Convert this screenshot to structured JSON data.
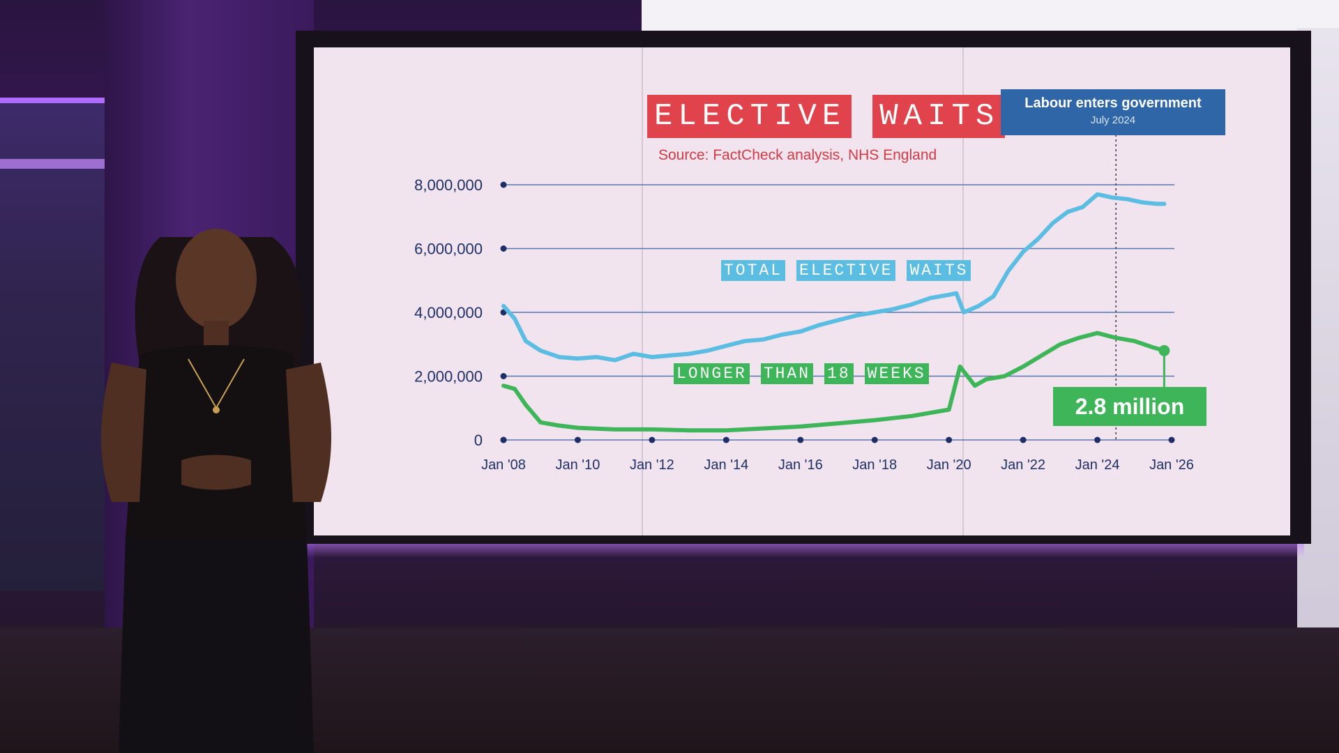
{
  "chart_data": {
    "type": "line",
    "title_words": [
      "ELECTIVE",
      "WAITS"
    ],
    "source": "Source: FactCheck analysis, NHS England",
    "ylim": [
      0,
      8000000
    ],
    "y_ticks": [
      {
        "value": 0,
        "label": "0"
      },
      {
        "value": 2000000,
        "label": "2,000,000"
      },
      {
        "value": 4000000,
        "label": "4,000,000"
      },
      {
        "value": 6000000,
        "label": "6,000,000"
      },
      {
        "value": 8000000,
        "label": "8,000,000"
      }
    ],
    "xlim": [
      2008,
      2026
    ],
    "x_ticks": [
      {
        "value": 2008,
        "label": "Jan '08"
      },
      {
        "value": 2010,
        "label": "Jan '10"
      },
      {
        "value": 2012,
        "label": "Jan '12"
      },
      {
        "value": 2014,
        "label": "Jan '14"
      },
      {
        "value": 2016,
        "label": "Jan '16"
      },
      {
        "value": 2018,
        "label": "Jan '18"
      },
      {
        "value": 2020,
        "label": "Jan '20"
      },
      {
        "value": 2022,
        "label": "Jan '22"
      },
      {
        "value": 2024,
        "label": "Jan '24"
      },
      {
        "value": 2026,
        "label": "Jan '26"
      }
    ],
    "grid": true,
    "series": [
      {
        "name": "TOTAL ELECTIVE WAITS",
        "name_words": [
          "TOTAL",
          "ELECTIVE",
          "WAITS"
        ],
        "color": "#5bbde2",
        "x": [
          2008,
          2008.3,
          2008.6,
          2009,
          2009.5,
          2010,
          2010.5,
          2011,
          2011.5,
          2012,
          2012.5,
          2013,
          2013.5,
          2014,
          2014.5,
          2015,
          2015.5,
          2016,
          2016.5,
          2017,
          2017.5,
          2018,
          2018.5,
          2019,
          2019.5,
          2020,
          2020.2,
          2020.4,
          2020.8,
          2021.2,
          2021.6,
          2022,
          2022.4,
          2022.8,
          2023.2,
          2023.6,
          2024,
          2024.4,
          2024.8,
          2025.2,
          2025.6,
          2025.8
        ],
        "values": [
          4200000,
          3800000,
          3100000,
          2800000,
          2600000,
          2550000,
          2600000,
          2500000,
          2700000,
          2600000,
          2650000,
          2700000,
          2800000,
          2950000,
          3100000,
          3150000,
          3300000,
          3400000,
          3600000,
          3750000,
          3900000,
          4000000,
          4100000,
          4250000,
          4450000,
          4550000,
          4600000,
          4000000,
          4200000,
          4500000,
          5300000,
          5900000,
          6300000,
          6800000,
          7150000,
          7300000,
          7700000,
          7600000,
          7550000,
          7450000,
          7400000,
          7400000
        ]
      },
      {
        "name": "LONGER THAN 18 WEEKS",
        "name_words": [
          "LONGER",
          "THAN",
          "18",
          "WEEKS"
        ],
        "color": "#3fb55a",
        "x": [
          2008,
          2008.3,
          2008.6,
          2009,
          2009.5,
          2010,
          2011,
          2012,
          2013,
          2014,
          2015,
          2016,
          2017,
          2018,
          2019,
          2019.5,
          2020,
          2020.3,
          2020.7,
          2021,
          2021.5,
          2022,
          2022.5,
          2023,
          2023.5,
          2024,
          2024.5,
          2025,
          2025.5,
          2025.8
        ],
        "values": [
          1700000,
          1600000,
          1100000,
          550000,
          450000,
          380000,
          330000,
          330000,
          300000,
          300000,
          360000,
          420000,
          520000,
          620000,
          750000,
          850000,
          950000,
          2300000,
          1700000,
          1900000,
          2000000,
          2300000,
          2650000,
          3000000,
          3200000,
          3350000,
          3200000,
          3100000,
          2900000,
          2800000
        ]
      }
    ],
    "annotation": {
      "title": "Labour enters government",
      "subtitle": "July 2024",
      "x": 2024.5
    },
    "callout": {
      "label": "2.8 million",
      "x": 2025.8,
      "value": 2800000
    }
  }
}
